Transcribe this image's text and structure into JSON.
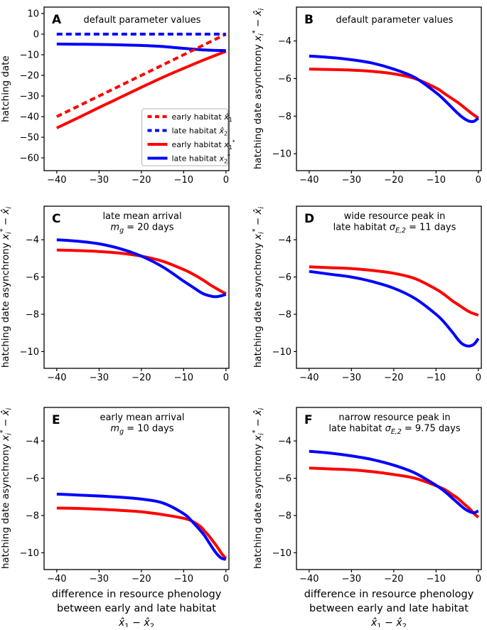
{
  "figure": {
    "background": "#ffffff",
    "colors": {
      "red": "#ff0000",
      "blue": "#0000ff",
      "axis": "#000000",
      "legend_border": "#b3b3b3"
    },
    "xlabel_lines": [
      "difference in resource phenology",
      "between early and late habitat",
      "*x̂*_{1} − *x̂*_{2}"
    ],
    "ylabel_asynchrony": "hatching date asynchrony *x*_{i}^{*} − *x̂*_{i}"
  },
  "chart_data": [
    {
      "panel": "A",
      "type": "line",
      "title_lines": [
        "default parameter values"
      ],
      "ylabel": "hatching date",
      "xlim": [
        -43,
        0.7
      ],
      "ylim": [
        -66.2,
        13.1
      ],
      "xticks": [
        -40,
        -30,
        -20,
        -10,
        0
      ],
      "yticks": [
        10,
        0,
        -10,
        -20,
        -30,
        -40,
        -50,
        -60
      ],
      "x": [
        -40,
        -35,
        -30,
        -25,
        -20,
        -15,
        -10,
        -5,
        0
      ],
      "show_legend": true,
      "series": [
        {
          "id": "early-habitat-xhat1",
          "name": "early habitat x̂₁",
          "label": "early habitat *x̂*_{1}",
          "color": "red",
          "dash": true,
          "values": [
            -40,
            -35,
            -30,
            -25,
            -20,
            -15,
            -10,
            -5,
            0
          ]
        },
        {
          "id": "late-habitat-xhat2",
          "name": "late habitat x̂₂",
          "label": "late habitat *x̂*_{2}",
          "color": "blue",
          "dash": true,
          "values": [
            0,
            0,
            0,
            0,
            0,
            0,
            0,
            0,
            0
          ]
        },
        {
          "id": "early-habitat-x1star",
          "name": "early habitat x₁*",
          "label": "early habitat *x*_{1}^{*}",
          "color": "red",
          "dash": false,
          "values": [
            -45.5,
            -40.6,
            -35.6,
            -30.7,
            -25.8,
            -21.0,
            -16.6,
            -12.3,
            -8.3
          ]
        },
        {
          "id": "late-habitat-x2star",
          "name": "late habitat x₂*",
          "label": "late habitat *x*_{2}^{*}",
          "color": "blue",
          "dash": false,
          "values": [
            -4.8,
            -4.9,
            -5.0,
            -5.2,
            -5.5,
            -6.0,
            -6.9,
            -7.7,
            -8.0
          ]
        }
      ]
    },
    {
      "panel": "B",
      "type": "line",
      "title_lines": [
        "default parameter values"
      ],
      "ylabel": "hatching date asynchrony *x*_{i}^{*} − *x̂*_{i}",
      "xlim": [
        -43,
        0.7
      ],
      "ylim": [
        -10.9,
        -2.2
      ],
      "xticks": [
        -40,
        -30,
        -20,
        -10,
        0
      ],
      "yticks": [
        -4,
        -6,
        -8,
        -10
      ],
      "x": [
        -40,
        -35,
        -30,
        -25,
        -20,
        -15,
        -10,
        -8,
        -6,
        -5,
        -4,
        -3,
        -2,
        -1,
        0
      ],
      "show_legend": false,
      "series": [
        {
          "id": "early-habitat-asynchrony",
          "name": "early habitat x₁*−x̂₁",
          "label": "early habitat *x*_{1}^{*}",
          "color": "red",
          "dash": false,
          "values": [
            -5.5,
            -5.52,
            -5.55,
            -5.62,
            -5.75,
            -6.0,
            -6.5,
            -6.8,
            -7.1,
            -7.25,
            -7.42,
            -7.6,
            -7.78,
            -7.95,
            -8.1
          ]
        },
        {
          "id": "late-habitat-asynchrony",
          "name": "late habitat x₂*−x̂₂",
          "label": "late habitat *x*_{2}^{*}",
          "color": "blue",
          "dash": false,
          "values": [
            -4.8,
            -4.88,
            -5.0,
            -5.18,
            -5.5,
            -5.95,
            -6.75,
            -7.15,
            -7.6,
            -7.82,
            -8.02,
            -8.18,
            -8.28,
            -8.27,
            -8.1
          ]
        }
      ]
    },
    {
      "panel": "C",
      "type": "line",
      "title_lines": [
        "late mean arrival",
        "*m*_{g} = 20 days"
      ],
      "ylabel": "hatching date asynchrony *x*_{i}^{*} − *x̂*_{i}",
      "xlim": [
        -43,
        0.7
      ],
      "ylim": [
        -10.9,
        -2.2
      ],
      "xticks": [
        -40,
        -30,
        -20,
        -10,
        0
      ],
      "yticks": [
        -4,
        -6,
        -8,
        -10
      ],
      "x": [
        -40,
        -35,
        -30,
        -25,
        -20,
        -15,
        -10,
        -8,
        -6,
        -5,
        -4,
        -3,
        -2,
        -1,
        0
      ],
      "show_legend": false,
      "series": [
        {
          "id": "early-habitat-asynchrony",
          "name": "early habitat x₁*−x̂₁",
          "label": "early habitat *x*_{1}^{*}",
          "color": "red",
          "dash": false,
          "values": [
            -4.55,
            -4.58,
            -4.63,
            -4.72,
            -4.88,
            -5.15,
            -5.6,
            -5.82,
            -6.08,
            -6.22,
            -6.38,
            -6.52,
            -6.65,
            -6.78,
            -6.9
          ]
        },
        {
          "id": "late-habitat-asynchrony",
          "name": "late habitat x₂*−x̂₂",
          "label": "late habitat *x*_{2}^{*}",
          "color": "blue",
          "dash": false,
          "values": [
            -4.0,
            -4.08,
            -4.22,
            -4.48,
            -4.88,
            -5.45,
            -6.22,
            -6.52,
            -6.82,
            -6.93,
            -7.0,
            -7.05,
            -7.05,
            -7.0,
            -6.93
          ]
        }
      ]
    },
    {
      "panel": "D",
      "type": "line",
      "title_lines": [
        "wide resource peak in",
        "late habitat *σ*_{E,2} = 11 days"
      ],
      "ylabel": "hatching date asynchrony *x*_{i}^{*} − *x̂*_{i}",
      "xlim": [
        -43,
        0.7
      ],
      "ylim": [
        -10.9,
        -2.2
      ],
      "xticks": [
        -40,
        -30,
        -20,
        -10,
        0
      ],
      "yticks": [
        -4,
        -6,
        -8,
        -10
      ],
      "x": [
        -40,
        -35,
        -30,
        -25,
        -20,
        -15,
        -10,
        -8,
        -6,
        -5,
        -4,
        -3,
        -2,
        -1,
        0
      ],
      "show_legend": false,
      "series": [
        {
          "id": "early-habitat-asynchrony",
          "name": "early habitat x₁*−x̂₁",
          "label": "early habitat *x*_{1}^{*}",
          "color": "red",
          "dash": false,
          "values": [
            -5.45,
            -5.5,
            -5.55,
            -5.65,
            -5.8,
            -6.08,
            -6.65,
            -6.95,
            -7.3,
            -7.45,
            -7.6,
            -7.75,
            -7.88,
            -7.97,
            -8.05
          ]
        },
        {
          "id": "late-habitat-asynchrony",
          "name": "late habitat x₂*−x̂₂",
          "label": "late habitat *x*_{2}^{*}",
          "color": "blue",
          "dash": false,
          "values": [
            -5.7,
            -5.85,
            -6.0,
            -6.25,
            -6.6,
            -7.15,
            -8.0,
            -8.45,
            -9.0,
            -9.3,
            -9.55,
            -9.68,
            -9.7,
            -9.6,
            -9.3
          ]
        }
      ]
    },
    {
      "panel": "E",
      "type": "line",
      "title_lines": [
        "early mean arrival",
        "*m*_{g} = 10 days"
      ],
      "ylabel": "hatching date asynchrony *x*_{i}^{*} − *x̂*_{i}",
      "xlabel_lines": [
        "difference in resource phenology",
        "between early and late habitat",
        "*x̂*_{1} − *x̂*_{2}"
      ],
      "xlim": [
        -43,
        0.7
      ],
      "ylim": [
        -10.9,
        -2.2
      ],
      "xticks": [
        -40,
        -30,
        -20,
        -10,
        0
      ],
      "yticks": [
        -4,
        -6,
        -8,
        -10
      ],
      "x": [
        -40,
        -35,
        -30,
        -25,
        -20,
        -15,
        -10,
        -8,
        -6,
        -5,
        -4,
        -3,
        -2,
        -1,
        0
      ],
      "show_legend": false,
      "series": [
        {
          "id": "early-habitat-asynchrony",
          "name": "early habitat x₁*−x̂₁",
          "label": "early habitat *x*_{1}^{*}",
          "color": "red",
          "dash": false,
          "values": [
            -7.6,
            -7.62,
            -7.66,
            -7.72,
            -7.8,
            -7.95,
            -8.15,
            -8.3,
            -8.6,
            -8.85,
            -9.1,
            -9.4,
            -9.7,
            -10.05,
            -10.3
          ]
        },
        {
          "id": "late-habitat-asynchrony",
          "name": "late habitat x₂*−x̂₂",
          "label": "late habitat *x*_{2}^{*}",
          "color": "blue",
          "dash": false,
          "values": [
            -6.85,
            -6.9,
            -6.95,
            -7.02,
            -7.12,
            -7.32,
            -7.9,
            -8.32,
            -8.82,
            -9.1,
            -9.45,
            -9.8,
            -10.1,
            -10.3,
            -10.35
          ]
        }
      ]
    },
    {
      "panel": "F",
      "type": "line",
      "title_lines": [
        "narrow resource peak in",
        "late habitat *σ*_{E,2} = 9.75 days"
      ],
      "ylabel": "hatching date asynchrony *x*_{i}^{*} − *x̂*_{i}",
      "xlabel_lines": [
        "difference in resource phenology",
        "between early and late habitat",
        "*x̂*_{1} − *x̂*_{2}"
      ],
      "xlim": [
        -43,
        0.7
      ],
      "ylim": [
        -10.9,
        -2.2
      ],
      "xticks": [
        -40,
        -30,
        -20,
        -10,
        0
      ],
      "yticks": [
        -4,
        -6,
        -8,
        -10
      ],
      "x": [
        -40,
        -35,
        -30,
        -25,
        -20,
        -15,
        -10,
        -8,
        -6,
        -5,
        -4,
        -3,
        -2,
        -1,
        0
      ],
      "show_legend": false,
      "series": [
        {
          "id": "early-habitat-asynchrony",
          "name": "early habitat x₁*−x̂₁",
          "label": "early habitat *x*_{1}^{*}",
          "color": "red",
          "dash": false,
          "values": [
            -5.45,
            -5.5,
            -5.55,
            -5.65,
            -5.8,
            -6.0,
            -6.4,
            -6.6,
            -6.9,
            -7.05,
            -7.25,
            -7.45,
            -7.65,
            -7.9,
            -8.1
          ]
        },
        {
          "id": "late-habitat-asynchrony",
          "name": "late habitat x₂*−x̂₂",
          "label": "late habitat *x*_{2}^{*}",
          "color": "blue",
          "dash": false,
          "values": [
            -4.55,
            -4.65,
            -4.8,
            -5.0,
            -5.3,
            -5.72,
            -6.38,
            -6.7,
            -7.1,
            -7.3,
            -7.5,
            -7.68,
            -7.8,
            -7.85,
            -7.75
          ]
        }
      ]
    }
  ]
}
